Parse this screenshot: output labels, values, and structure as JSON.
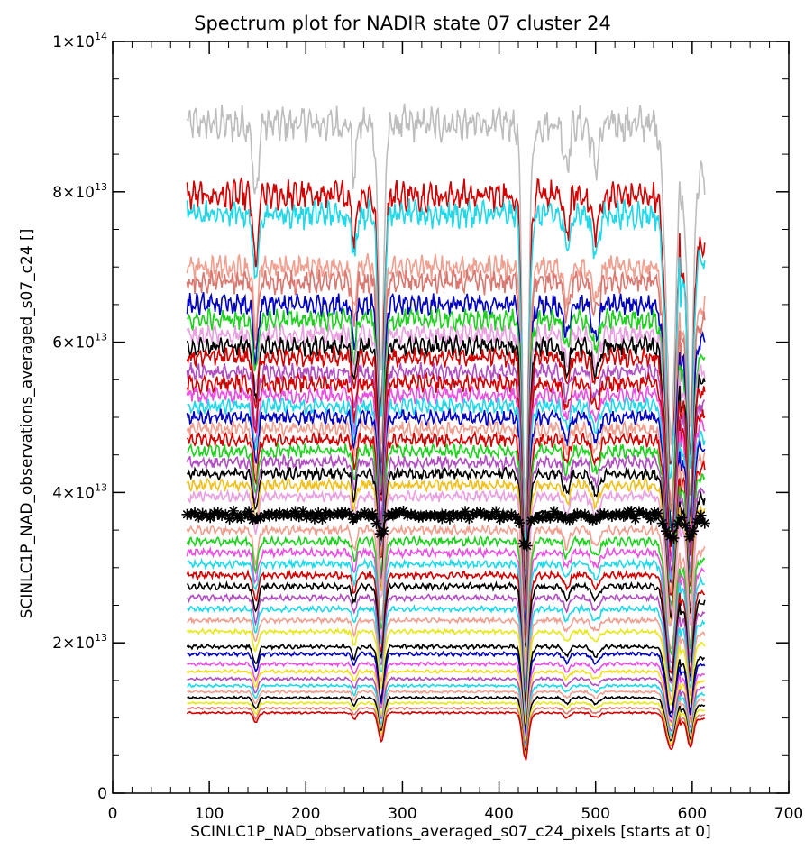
{
  "chart_data": {
    "type": "line",
    "title": "Spectrum plot for NADIR state 07 cluster 24",
    "xlabel": "SCINLC1P_NAD_observations_averaged_s07_c24_pixels [starts at 0]",
    "ylabel": "SCINLC1P_NAD_observations_averaged_s07_c24 []",
    "xlim": [
      0,
      700
    ],
    "ylim": [
      0,
      100000000000000.0
    ],
    "x_ticks": [
      "0",
      "100",
      "200",
      "300",
      "400",
      "500",
      "600",
      "700"
    ],
    "y_ticks": [
      {
        "mantissa": "0",
        "exponent": ""
      },
      {
        "mantissa": "2×10",
        "exponent": "13"
      },
      {
        "mantissa": "4×10",
        "exponent": "13"
      },
      {
        "mantissa": "6×10",
        "exponent": "13"
      },
      {
        "mantissa": "8×10",
        "exponent": "13"
      },
      {
        "mantissa": "1×10",
        "exponent": "14"
      }
    ],
    "x_range": [
      77,
      613
    ],
    "series_levels": [
      {
        "level": 89000000000000.0,
        "color": "#bdbdbd"
      },
      {
        "level": 79500000000000.0,
        "color": "#d00000"
      },
      {
        "level": 77000000000000.0,
        "color": "#20d8e8"
      },
      {
        "level": 70000000000000.0,
        "color": "#f0a090"
      },
      {
        "level": 68000000000000.0,
        "color": "#d87870"
      },
      {
        "level": 65000000000000.0,
        "color": "#0000c0"
      },
      {
        "level": 63000000000000.0,
        "color": "#20d020"
      },
      {
        "level": 61000000000000.0,
        "color": "#e8a0e0"
      },
      {
        "level": 59500000000000.0,
        "color": "#000000"
      },
      {
        "level": 58000000000000.0,
        "color": "#d00000"
      },
      {
        "level": 56000000000000.0,
        "color": "#b050c0"
      },
      {
        "level": 54500000000000.0,
        "color": "#d00000"
      },
      {
        "level": 53000000000000.0,
        "color": "#e850e0"
      },
      {
        "level": 51500000000000.0,
        "color": "#20d8e8"
      },
      {
        "level": 50000000000000.0,
        "color": "#0000c0"
      },
      {
        "level": 48500000000000.0,
        "color": "#f0a090"
      },
      {
        "level": 47000000000000.0,
        "color": "#d00000"
      },
      {
        "level": 45500000000000.0,
        "color": "#20d020"
      },
      {
        "level": 44000000000000.0,
        "color": "#b050c0"
      },
      {
        "level": 42500000000000.0,
        "color": "#000000"
      },
      {
        "level": 41000000000000.0,
        "color": "#f0c020"
      },
      {
        "level": 39500000000000.0,
        "color": "#e8a0e0"
      },
      {
        "level": 35000000000000.0,
        "color": "#f0a090"
      },
      {
        "level": 33500000000000.0,
        "color": "#20d020"
      },
      {
        "level": 32000000000000.0,
        "color": "#e850e0"
      },
      {
        "level": 30500000000000.0,
        "color": "#20d8e8"
      },
      {
        "level": 29000000000000.0,
        "color": "#d00000"
      },
      {
        "level": 27500000000000.0,
        "color": "#000000"
      },
      {
        "level": 26000000000000.0,
        "color": "#b050c0"
      },
      {
        "level": 24500000000000.0,
        "color": "#20d8e8"
      },
      {
        "level": 23000000000000.0,
        "color": "#f0a090"
      },
      {
        "level": 21500000000000.0,
        "color": "#e8e820"
      },
      {
        "level": 19500000000000.0,
        "color": "#000000"
      },
      {
        "level": 18500000000000.0,
        "color": "#0000c0"
      },
      {
        "level": 17200000000000.0,
        "color": "#e850e0"
      },
      {
        "level": 16200000000000.0,
        "color": "#f0e020"
      },
      {
        "level": 15200000000000.0,
        "color": "#b050c0"
      },
      {
        "level": 14300000000000.0,
        "color": "#20d8e8"
      },
      {
        "level": 13500000000000.0,
        "color": "#f0a090"
      },
      {
        "level": 12700000000000.0,
        "color": "#000000"
      },
      {
        "level": 12000000000000.0,
        "color": "#e8e820"
      },
      {
        "level": 11300000000000.0,
        "color": "#d87870"
      },
      {
        "level": 10700000000000.0,
        "color": "#d00000"
      }
    ],
    "marker_series": {
      "level": 37000000000000.0,
      "color": "#000000",
      "marker": "asterisk"
    },
    "grid": false
  }
}
